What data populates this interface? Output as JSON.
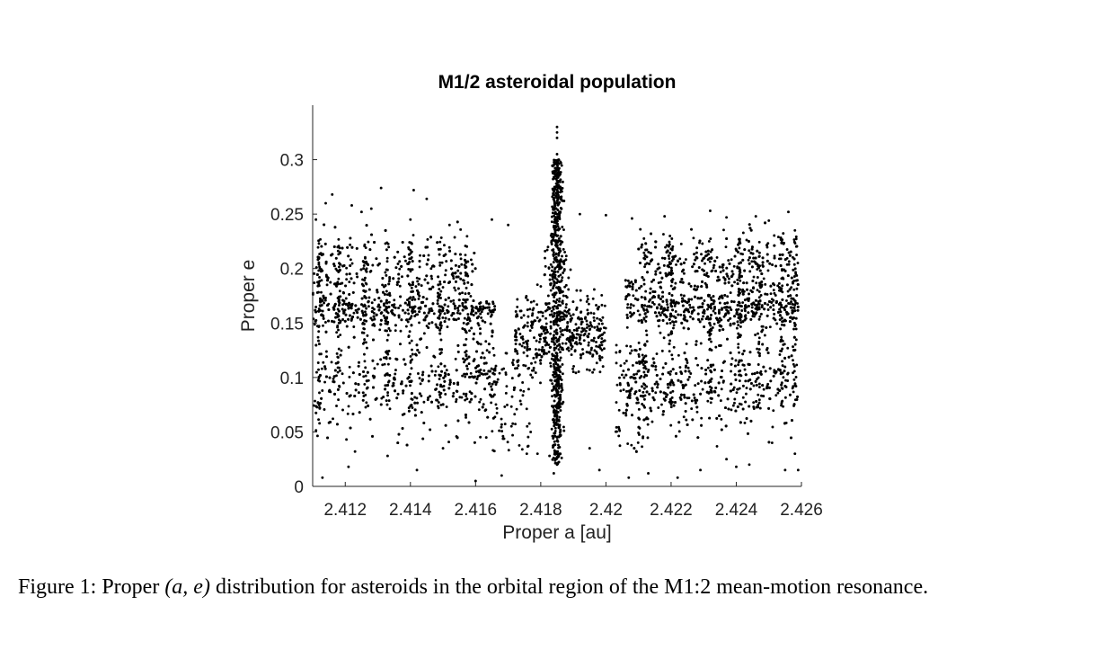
{
  "caption": {
    "prefix": "Figure 1: Proper",
    "math": "(a, e)",
    "rest": "distribution for asteroids in the orbital region of the M1:2 mean-motion resonance."
  },
  "chart_data": {
    "type": "scatter",
    "title": "M1/2 asteroidal population",
    "xlabel": "Proper a [au]",
    "ylabel": "Proper e",
    "xlim": [
      2.411,
      2.426
    ],
    "ylim": [
      0,
      0.35
    ],
    "xticks": [
      2.412,
      2.414,
      2.416,
      2.418,
      2.42,
      2.422,
      2.424,
      2.426
    ],
    "xtick_labels": [
      "2.412",
      "2.414",
      "2.416",
      "2.418",
      "2.42",
      "2.422",
      "2.424",
      "2.426"
    ],
    "yticks": [
      0,
      0.05,
      0.1,
      0.15,
      0.2,
      0.25,
      0.3
    ],
    "ytick_labels": [
      "0",
      "0.05",
      "0.1",
      "0.15",
      "0.2",
      "0.25",
      "0.3"
    ],
    "grid": false,
    "marker_color": "#000000",
    "points": [
      [
        2.4185,
        0.33
      ],
      [
        2.4185,
        0.325
      ],
      [
        2.4185,
        0.32
      ],
      [
        2.4185,
        0.305
      ],
      [
        2.4184,
        0.295
      ],
      [
        2.4185,
        0.285
      ],
      [
        2.4186,
        0.275
      ],
      [
        2.4184,
        0.268
      ],
      [
        2.4185,
        0.26
      ],
      [
        2.4186,
        0.252
      ],
      [
        2.4185,
        0.245
      ],
      [
        2.4184,
        0.238
      ],
      [
        2.4185,
        0.23
      ],
      [
        2.4186,
        0.222
      ],
      [
        2.4184,
        0.215
      ],
      [
        2.4185,
        0.208
      ],
      [
        2.4186,
        0.2
      ],
      [
        2.4184,
        0.195
      ],
      [
        2.4185,
        0.19
      ],
      [
        2.4183,
        0.185
      ],
      [
        2.4186,
        0.18
      ],
      [
        2.4187,
        0.175
      ],
      [
        2.4184,
        0.17
      ],
      [
        2.4185,
        0.165
      ],
      [
        2.4182,
        0.162
      ],
      [
        2.4188,
        0.16
      ],
      [
        2.4185,
        0.155
      ],
      [
        2.4184,
        0.15
      ],
      [
        2.4186,
        0.145
      ],
      [
        2.4185,
        0.14
      ],
      [
        2.4184,
        0.135
      ],
      [
        2.4186,
        0.128
      ],
      [
        2.4185,
        0.12
      ],
      [
        2.4184,
        0.112
      ],
      [
        2.4186,
        0.105
      ],
      [
        2.4185,
        0.098
      ],
      [
        2.4184,
        0.09
      ],
      [
        2.4186,
        0.082
      ],
      [
        2.4185,
        0.075
      ],
      [
        2.4184,
        0.068
      ],
      [
        2.4185,
        0.06
      ],
      [
        2.4186,
        0.052
      ],
      [
        2.4185,
        0.045
      ],
      [
        2.4184,
        0.038
      ],
      [
        2.4186,
        0.03
      ],
      [
        2.4185,
        0.02
      ],
      [
        2.4184,
        0.012
      ],
      [
        2.4111,
        0.245
      ],
      [
        2.4114,
        0.26
      ],
      [
        2.4116,
        0.268
      ],
      [
        2.4122,
        0.258
      ],
      [
        2.4125,
        0.252
      ],
      [
        2.4128,
        0.255
      ],
      [
        2.4131,
        0.274
      ],
      [
        2.4141,
        0.272
      ],
      [
        2.4145,
        0.264
      ],
      [
        2.414,
        0.245
      ],
      [
        2.4152,
        0.24
      ],
      [
        2.4165,
        0.245
      ],
      [
        2.417,
        0.24
      ],
      [
        2.4192,
        0.25
      ],
      [
        2.42,
        0.249
      ],
      [
        2.4208,
        0.246
      ],
      [
        2.4218,
        0.248
      ],
      [
        2.4232,
        0.253
      ],
      [
        2.4237,
        0.247
      ],
      [
        2.4246,
        0.248
      ],
      [
        2.4256,
        0.252
      ],
      [
        2.425,
        0.244
      ],
      [
        2.4258,
        0.235
      ],
      [
        2.4113,
        0.008
      ],
      [
        2.4121,
        0.018
      ],
      [
        2.4123,
        0.032
      ],
      [
        2.4133,
        0.028
      ],
      [
        2.4142,
        0.015
      ],
      [
        2.415,
        0.035
      ],
      [
        2.416,
        0.005
      ],
      [
        2.4168,
        0.01
      ],
      [
        2.4179,
        0.03
      ],
      [
        2.4195,
        0.035
      ],
      [
        2.4198,
        0.015
      ],
      [
        2.4207,
        0.008
      ],
      [
        2.4213,
        0.012
      ],
      [
        2.4222,
        0.008
      ],
      [
        2.4229,
        0.015
      ],
      [
        2.4237,
        0.025
      ],
      [
        2.424,
        0.018
      ],
      [
        2.4244,
        0.02
      ],
      [
        2.4251,
        0.04
      ],
      [
        2.4255,
        0.015
      ],
      [
        2.4258,
        0.03
      ],
      [
        2.4259,
        0.015
      ]
    ]
  }
}
